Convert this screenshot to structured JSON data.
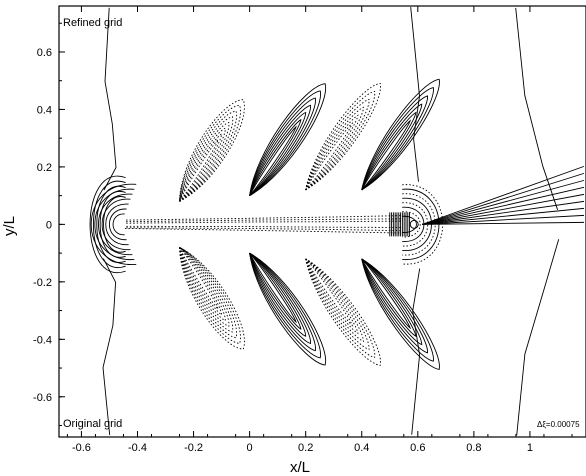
{
  "chart_data": {
    "type": "contour",
    "xlabel": "x/L",
    "ylabel": "y/L",
    "xlim": [
      -0.68,
      1.2
    ],
    "ylim": [
      -0.74,
      0.76
    ],
    "xticks": [
      -0.6,
      -0.4,
      -0.2,
      0,
      0.2,
      0.4,
      0.6,
      0.8,
      1
    ],
    "xtick_labels": [
      "-0.6",
      "-0.4",
      "-0.2",
      "0",
      "0.2",
      "0.4",
      "0.6",
      "0.8",
      "1"
    ],
    "yticks": [
      -0.6,
      -0.4,
      -0.2,
      0,
      0.2,
      0.4,
      0.6
    ],
    "ytick_labels": [
      "-0.6",
      "-0.4",
      "-0.2",
      "0",
      "0.2",
      "0.4",
      "0.6"
    ],
    "grid": false,
    "line_color": "#000000",
    "annotations": {
      "top_left": "Refined grid",
      "bottom_left": "Original grid",
      "contour_interval": "Δξ=0.00075"
    },
    "features": {
      "bow_center": [
        -0.46,
        0
      ],
      "stern_center": [
        0.58,
        0
      ],
      "positive_contours": "solid",
      "negative_contours": "dotted"
    }
  }
}
